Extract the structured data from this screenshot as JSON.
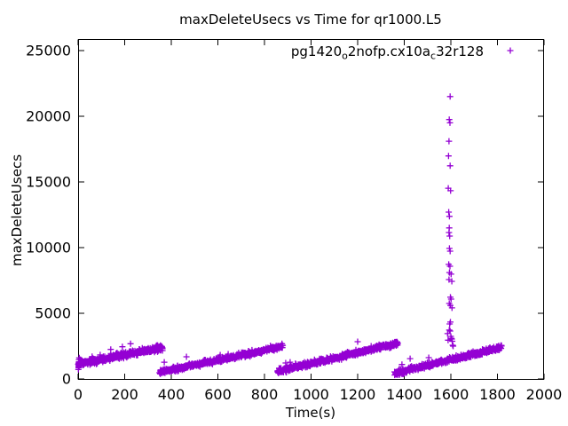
{
  "chart_data": {
    "type": "scatter",
    "title": "maxDeleteUsecs vs Time for qr1000.L5",
    "xlabel": "Time(s)",
    "ylabel": "maxDeleteUsecs",
    "xlim": [
      0,
      2000
    ],
    "ylim": [
      0,
      25000
    ],
    "x_ticks": [
      0,
      200,
      400,
      600,
      800,
      1000,
      1200,
      1400,
      1600,
      1800,
      2000
    ],
    "y_ticks": [
      0,
      5000,
      10000,
      15000,
      20000,
      25000
    ],
    "grid": false,
    "legend_position": "top-right-inside",
    "series_name": "pg1420_o2nofp.cx10a_c32r128",
    "legend_label_parts": [
      {
        "text": "pg1420",
        "sub": false
      },
      {
        "text": "o",
        "sub": true
      },
      {
        "text": "2nofp.cx10a",
        "sub": false
      },
      {
        "text": "c",
        "sub": true
      },
      {
        "text": "32r128",
        "sub": false
      }
    ],
    "marker": "plus",
    "series_color": "#9400d3",
    "seed": 20240613,
    "ramp_segments": [
      {
        "t_start": 0,
        "t_end": 363,
        "v_start": 1150,
        "v_end": 2380,
        "n": 420,
        "noise": 200
      },
      {
        "t_start": 350,
        "t_end": 878,
        "v_start": 520,
        "v_end": 2480,
        "n": 500,
        "noise": 190
      },
      {
        "t_start": 856,
        "t_end": 1372,
        "v_start": 580,
        "v_end": 2720,
        "n": 500,
        "noise": 190
      },
      {
        "t_start": 1358,
        "t_end": 1818,
        "v_start": 430,
        "v_end": 2400,
        "n": 440,
        "noise": 190
      }
    ],
    "spike_points": [
      [
        1597,
        21500
      ],
      [
        1593,
        19750
      ],
      [
        1596,
        19500
      ],
      [
        1592,
        18100
      ],
      [
        1590,
        16980
      ],
      [
        1597,
        16230
      ],
      [
        1589,
        14520
      ],
      [
        1599,
        14330
      ],
      [
        1591,
        12700
      ],
      [
        1594,
        12380
      ],
      [
        1593,
        11500
      ],
      [
        1592,
        11150
      ],
      [
        1595,
        10880
      ],
      [
        1594,
        9940
      ],
      [
        1597,
        9730
      ],
      [
        1591,
        8720
      ],
      [
        1596,
        8580
      ],
      [
        1594,
        8100
      ],
      [
        1601,
        7980
      ],
      [
        1592,
        7570
      ],
      [
        1604,
        7430
      ],
      [
        1598,
        6220
      ],
      [
        1601,
        6080
      ],
      [
        1593,
        5750
      ],
      [
        1598,
        5600
      ],
      [
        1605,
        5410
      ],
      [
        1598,
        4330
      ],
      [
        1595,
        4190
      ],
      [
        1593,
        3720
      ],
      [
        1597,
        3650
      ],
      [
        1600,
        3240
      ],
      [
        1602,
        3100
      ],
      [
        1604,
        3040
      ],
      [
        1606,
        2870
      ],
      [
        1608,
        2570
      ],
      [
        1610,
        2500
      ],
      [
        1586,
        3450
      ],
      [
        1588,
        2950
      ]
    ],
    "outlier_points": [
      [
        60,
        1700
      ],
      [
        95,
        1830
      ],
      [
        140,
        2250
      ],
      [
        190,
        2450
      ],
      [
        225,
        2680
      ],
      [
        370,
        1280
      ],
      [
        465,
        1690
      ],
      [
        610,
        1825
      ],
      [
        644,
        1890
      ],
      [
        891,
        1215
      ],
      [
        910,
        1280
      ],
      [
        1067,
        1620
      ],
      [
        1200,
        2840
      ],
      [
        1390,
        1100
      ],
      [
        1425,
        1550
      ],
      [
        1505,
        1620
      ]
    ],
    "extra_points": [
      [
        1,
        720
      ],
      [
        2,
        860
      ],
      [
        2,
        1010
      ],
      [
        3,
        1160
      ],
      [
        3,
        920
      ],
      [
        4,
        1310
      ],
      [
        4,
        1460
      ],
      [
        5,
        1600
      ],
      [
        6,
        1120
      ],
      [
        8,
        1260
      ],
      [
        10,
        1480
      ]
    ]
  }
}
